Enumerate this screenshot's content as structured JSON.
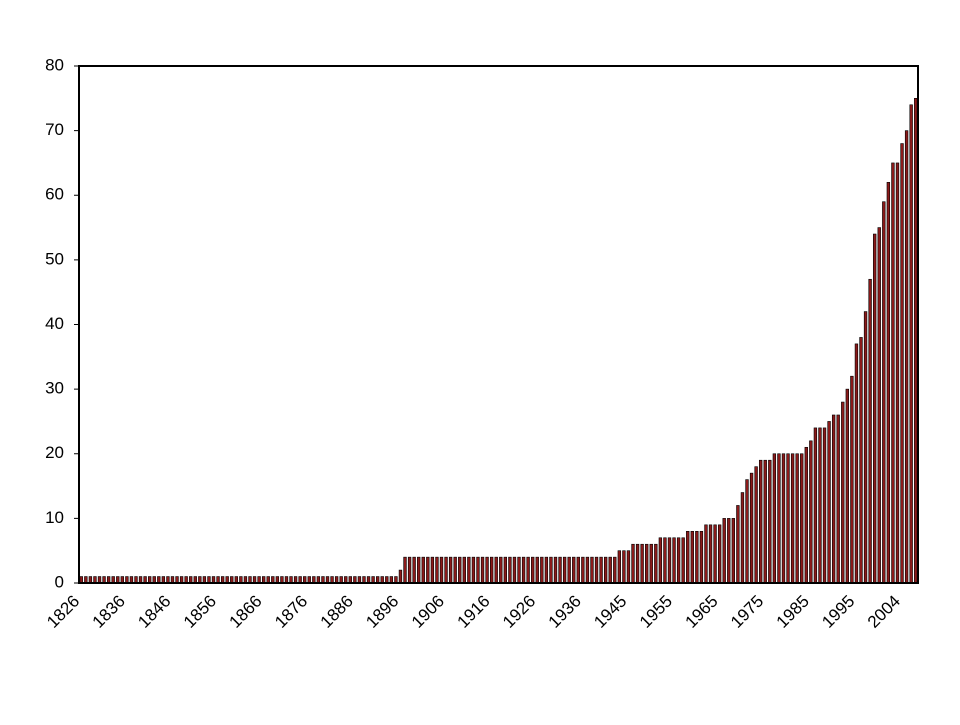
{
  "chart_data": {
    "type": "bar",
    "categories": [
      "1826",
      null,
      null,
      null,
      null,
      null,
      null,
      null,
      null,
      null,
      "1836",
      null,
      null,
      null,
      null,
      null,
      null,
      null,
      null,
      null,
      "1846",
      null,
      null,
      null,
      null,
      null,
      null,
      null,
      null,
      null,
      "1856",
      null,
      null,
      null,
      null,
      null,
      null,
      null,
      null,
      null,
      "1866",
      null,
      null,
      null,
      null,
      null,
      null,
      null,
      null,
      null,
      "1876",
      null,
      null,
      null,
      null,
      null,
      null,
      null,
      null,
      null,
      "1886",
      null,
      null,
      null,
      null,
      null,
      null,
      null,
      null,
      null,
      "1896",
      null,
      null,
      null,
      null,
      null,
      null,
      null,
      null,
      null,
      "1906",
      null,
      null,
      null,
      null,
      null,
      null,
      null,
      null,
      null,
      "1916",
      null,
      null,
      null,
      null,
      null,
      null,
      null,
      null,
      null,
      "1926",
      null,
      null,
      null,
      null,
      null,
      null,
      null,
      null,
      null,
      "1936",
      null,
      null,
      null,
      null,
      null,
      null,
      null,
      null,
      null,
      "1945",
      null,
      null,
      null,
      null,
      null,
      null,
      null,
      null,
      null,
      "1955",
      null,
      null,
      null,
      null,
      null,
      null,
      null,
      null,
      null,
      "1965",
      null,
      null,
      null,
      null,
      null,
      null,
      null,
      null,
      null,
      "1975",
      null,
      null,
      null,
      null,
      null,
      null,
      null,
      null,
      null,
      "1985",
      null,
      null,
      null,
      null,
      null,
      null,
      null,
      null,
      null,
      "1995",
      null,
      null,
      null,
      null,
      null,
      null,
      null,
      null,
      null,
      "2004",
      null,
      null,
      null
    ],
    "values": [
      1,
      1,
      1,
      1,
      1,
      1,
      1,
      1,
      1,
      1,
      1,
      1,
      1,
      1,
      1,
      1,
      1,
      1,
      1,
      1,
      1,
      1,
      1,
      1,
      1,
      1,
      1,
      1,
      1,
      1,
      1,
      1,
      1,
      1,
      1,
      1,
      1,
      1,
      1,
      1,
      1,
      1,
      1,
      1,
      1,
      1,
      1,
      1,
      1,
      1,
      1,
      1,
      1,
      1,
      1,
      1,
      1,
      1,
      1,
      1,
      1,
      1,
      1,
      1,
      1,
      1,
      1,
      1,
      1,
      1,
      2,
      4,
      4,
      4,
      4,
      4,
      4,
      4,
      4,
      4,
      4,
      4,
      4,
      4,
      4,
      4,
      4,
      4,
      4,
      4,
      4,
      4,
      4,
      4,
      4,
      4,
      4,
      4,
      4,
      4,
      4,
      4,
      4,
      4,
      4,
      4,
      4,
      4,
      4,
      4,
      4,
      4,
      4,
      4,
      4,
      4,
      4,
      4,
      5,
      5,
      5,
      6,
      6,
      6,
      6,
      6,
      6,
      7,
      7,
      7,
      7,
      7,
      7,
      8,
      8,
      8,
      8,
      9,
      9,
      9,
      9,
      10,
      10,
      10,
      12,
      14,
      16,
      17,
      18,
      19,
      19,
      19,
      20,
      20,
      20,
      20,
      20,
      20,
      20,
      21,
      22,
      24,
      24,
      24,
      25,
      26,
      26,
      28,
      30,
      32,
      37,
      38,
      42,
      47,
      54,
      55,
      59,
      62,
      65,
      65,
      68,
      70,
      74,
      75
    ],
    "color": "#8b1a1a",
    "ylim": [
      0,
      80
    ],
    "yticks": [
      0,
      10,
      20,
      30,
      40,
      50,
      60,
      70,
      80
    ],
    "grid": false
  }
}
